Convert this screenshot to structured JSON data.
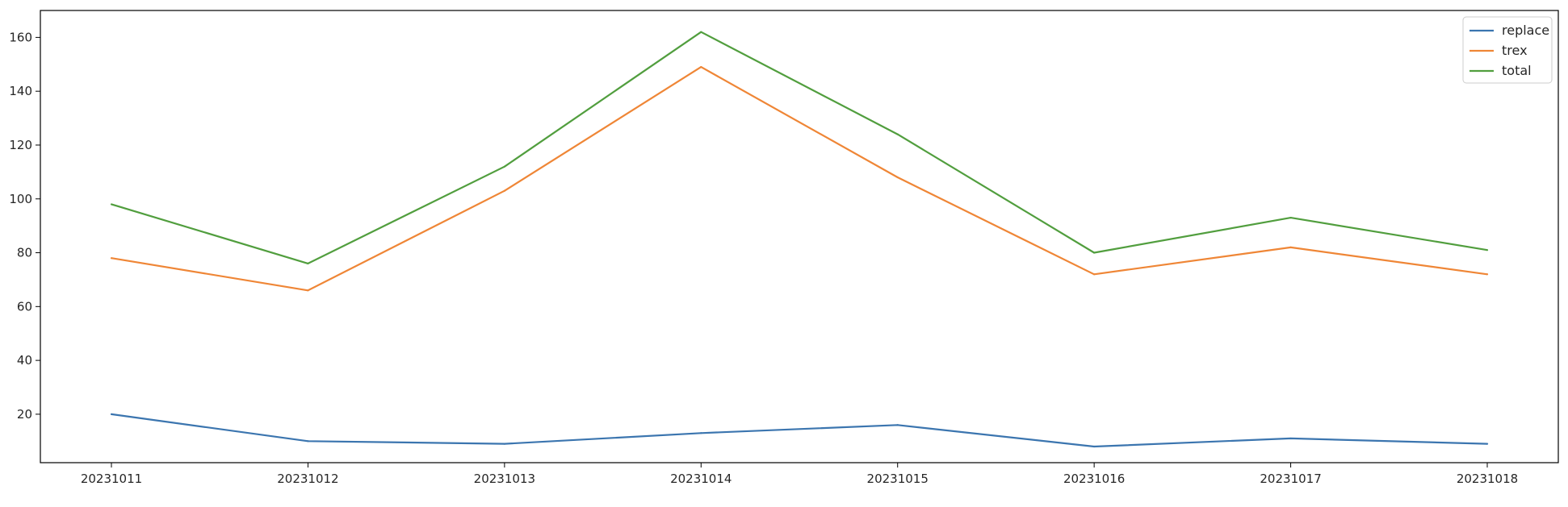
{
  "chart_data": {
    "type": "line",
    "title": "",
    "xlabel": "",
    "ylabel": "",
    "categories": [
      "20231011",
      "20231012",
      "20231013",
      "20231014",
      "20231015",
      "20231016",
      "20231017",
      "20231018"
    ],
    "ylim": [
      2,
      170
    ],
    "yticks": [
      20,
      40,
      60,
      80,
      100,
      120,
      140,
      160
    ],
    "grid": false,
    "legend_position": "top-right",
    "series": [
      {
        "name": "replace",
        "color": "#3b75af",
        "values": [
          20,
          10,
          9,
          13,
          16,
          8,
          11,
          9
        ]
      },
      {
        "name": "trex",
        "color": "#ef8636",
        "values": [
          78,
          66,
          103,
          149,
          108,
          72,
          82,
          72
        ]
      },
      {
        "name": "total",
        "color": "#519e3e",
        "values": [
          98,
          76,
          112,
          162,
          124,
          80,
          93,
          81
        ]
      }
    ]
  }
}
